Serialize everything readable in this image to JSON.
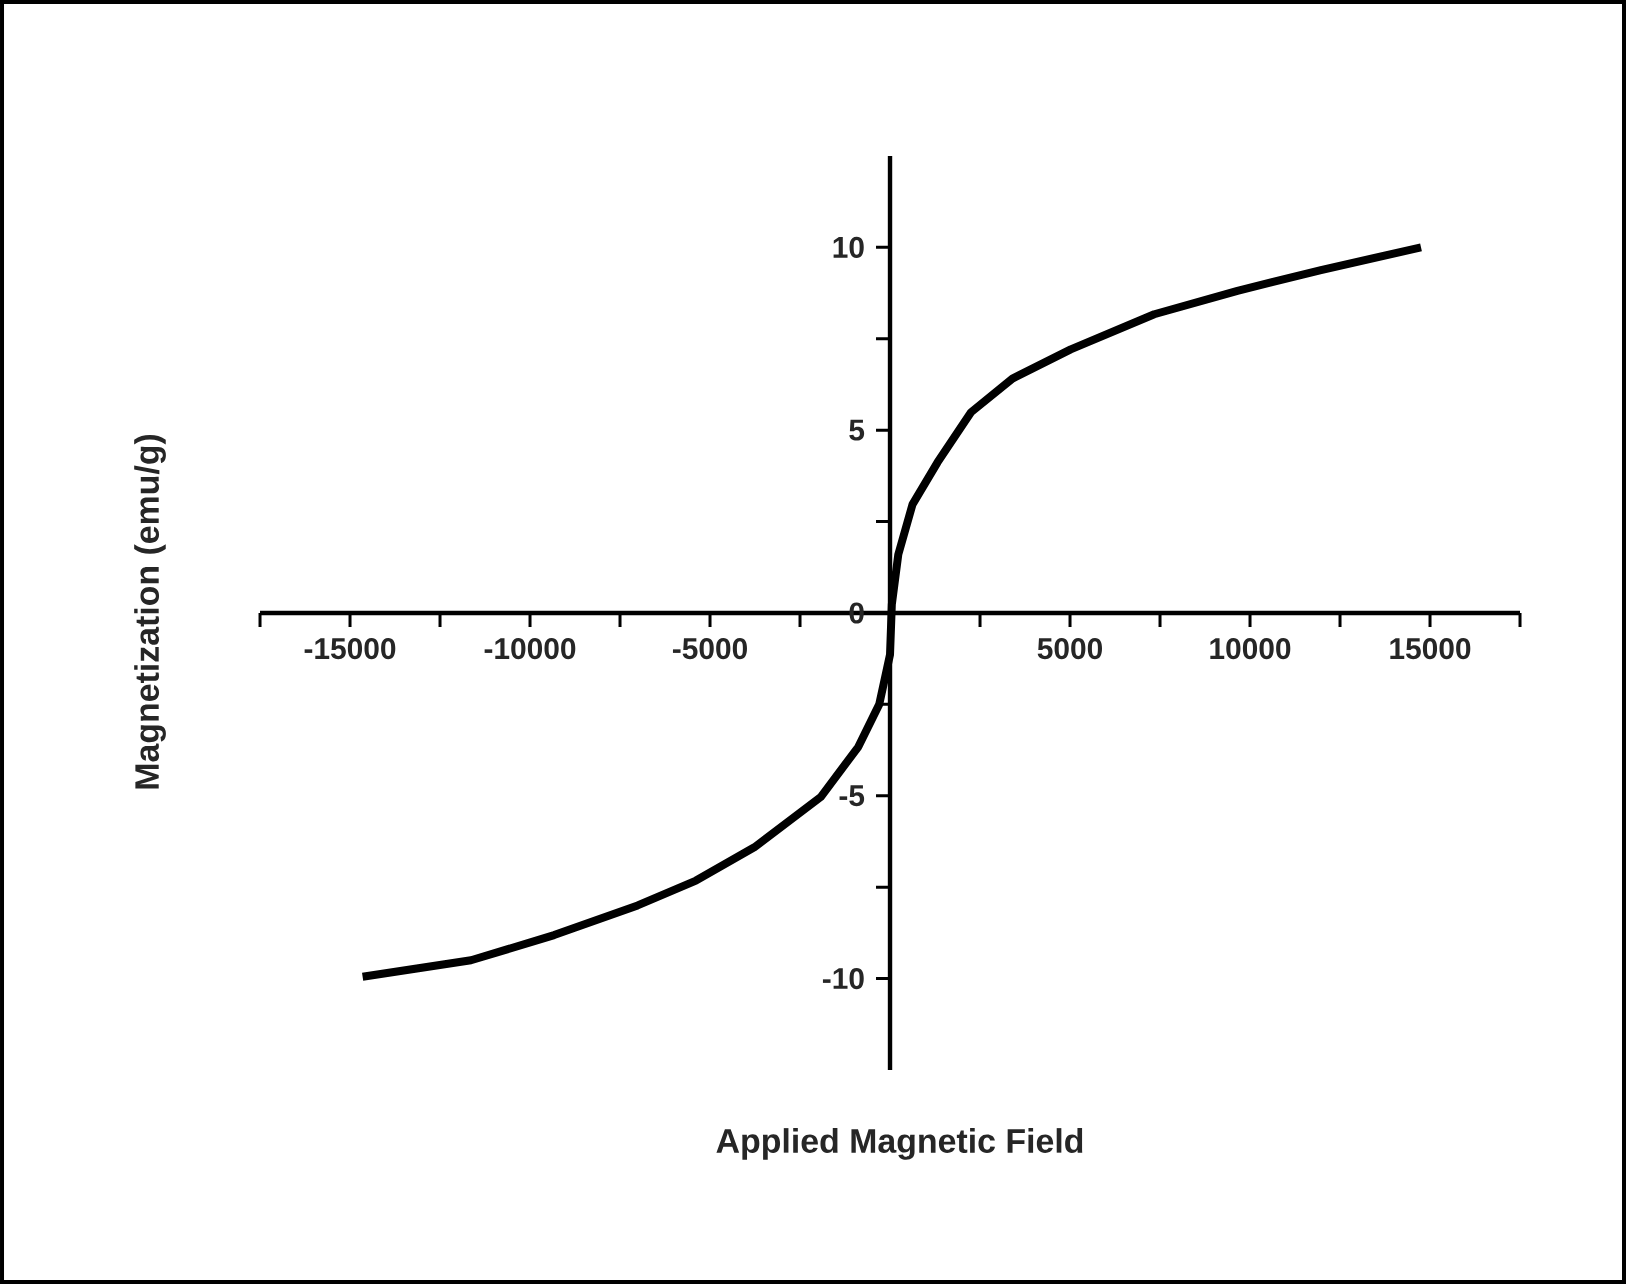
{
  "chart_data": {
    "type": "line",
    "xlabel": "Applied Magnetic Field",
    "ylabel": "Magnetization (emu/g)",
    "x": [
      -14650,
      -11640,
      -9330,
      -7010,
      -5390,
      -3770,
      -1920,
      -880,
      -300,
      0,
      50,
      230,
      625,
      1320,
      2250,
      3400,
      5020,
      7340,
      9650,
      11970,
      14750
    ],
    "values": [
      -9.95,
      -9.5,
      -8.81,
      -8.0,
      -7.32,
      -6.41,
      -5.03,
      -3.66,
      -2.5,
      -1.14,
      0.23,
      1.6,
      2.97,
      4.12,
      5.49,
      6.41,
      7.21,
      8.17,
      8.81,
      9.38,
      10.0
    ],
    "color": "#000000",
    "xlim": [
      -17500,
      17500
    ],
    "ylim": [
      -12.5,
      12.5
    ],
    "xticks": [
      {
        "value": -17500,
        "label": null
      },
      -15000,
      {
        "value": -12500,
        "label": null
      },
      -10000,
      {
        "value": -7500,
        "label": null
      },
      -5000,
      {
        "value": -2500,
        "label": null
      },
      {
        "value": 0,
        "label": null
      },
      {
        "value": 2500,
        "label": null
      },
      5000,
      {
        "value": 7500,
        "label": null
      },
      10000,
      {
        "value": 12500,
        "label": null
      },
      15000,
      {
        "value": 17500,
        "label": null
      }
    ],
    "yticks": [
      -10,
      {
        "value": -7.5,
        "label": null
      },
      -5,
      {
        "value": -2.5,
        "label": null
      },
      0,
      {
        "value": 2.5,
        "label": null
      },
      5,
      {
        "value": 7.5,
        "label": null
      },
      10
    ],
    "marker": "none",
    "line_style": "solid"
  }
}
